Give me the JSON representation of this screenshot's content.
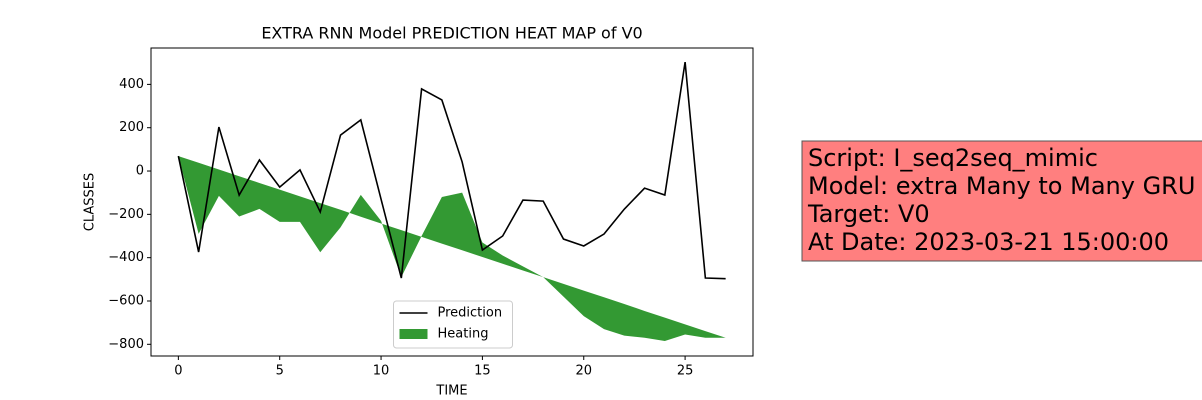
{
  "chart_data": {
    "type": "line",
    "title": "EXTRA RNN Model PREDICTION HEAT MAP of V0",
    "xlabel": "TIME",
    "ylabel": "CLASSES",
    "x": [
      0,
      1,
      2,
      3,
      4,
      5,
      6,
      7,
      8,
      9,
      10,
      11,
      12,
      13,
      14,
      15,
      16,
      17,
      18,
      19,
      20,
      21,
      22,
      23,
      24,
      25,
      26,
      27
    ],
    "series": [
      {
        "name": "Prediction",
        "color": "#000000",
        "values": [
          69,
          -374,
          203,
          -111,
          51,
          -74,
          5,
          -189,
          166,
          236,
          -130,
          -494,
          379,
          328,
          42,
          -365,
          -300,
          -134,
          -139,
          -314,
          -346,
          -291,
          -176,
          -79,
          -111,
          503,
          -494,
          -497
        ]
      },
      {
        "name": "Heating",
        "color": "#008000",
        "kind": "fill_between",
        "values": [
          69,
          -290,
          -115,
          -210,
          -175,
          -235,
          -235,
          -375,
          -260,
          -110,
          -230,
          -490,
          -300,
          -120,
          -100,
          -330,
          -390,
          -440,
          -490,
          -580,
          -670,
          -730,
          -760,
          -770,
          -785,
          -755,
          -770,
          -770
        ],
        "base": [
          69,
          38,
          7,
          -24,
          -55,
          -86,
          -117,
          -148,
          -179,
          -211,
          -242,
          -273,
          -304,
          -335,
          -366,
          -397,
          -428,
          -459,
          -490,
          -521,
          -552,
          -583,
          -614,
          -646,
          -677,
          -708,
          -739,
          -770
        ]
      }
    ],
    "xlim": [
      -1.35,
      28.35
    ],
    "ylim": [
      -854,
      568
    ],
    "xticks": [
      0,
      5,
      10,
      15,
      20,
      25
    ],
    "yticks": [
      {
        "value": -800,
        "label": "−800"
      },
      {
        "value": -600,
        "label": "−600"
      },
      {
        "value": -400,
        "label": "−400"
      },
      {
        "value": -200,
        "label": "−200"
      },
      0,
      200,
      400
    ],
    "legend": "lower center",
    "annotation": [
      "Script: I_seq2seq_mimic",
      "Model: extra Many to Many GRU",
      "Target: V0",
      "At Date: 2023-03-21 15:00:00"
    ]
  }
}
